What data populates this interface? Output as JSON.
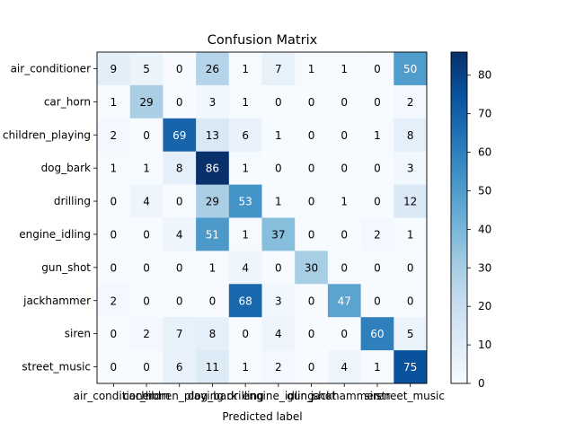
{
  "chart_data": {
    "type": "heatmap",
    "title": "Confusion Matrix",
    "xlabel": "Predicted label",
    "ylabel": "",
    "labels": [
      "air_conditioner",
      "car_horn",
      "children_playing",
      "dog_bark",
      "drilling",
      "engine_idling",
      "gun_shot",
      "jackhammer",
      "siren",
      "street_music"
    ],
    "matrix": [
      [
        9,
        5,
        0,
        26,
        1,
        7,
        1,
        1,
        0,
        50
      ],
      [
        1,
        29,
        0,
        3,
        1,
        0,
        0,
        0,
        0,
        2
      ],
      [
        2,
        0,
        69,
        13,
        6,
        1,
        0,
        0,
        1,
        8
      ],
      [
        1,
        1,
        8,
        86,
        1,
        0,
        0,
        0,
        0,
        3
      ],
      [
        0,
        4,
        0,
        29,
        53,
        1,
        0,
        1,
        0,
        12
      ],
      [
        0,
        0,
        4,
        51,
        1,
        37,
        0,
        0,
        2,
        1
      ],
      [
        0,
        0,
        0,
        1,
        4,
        0,
        30,
        0,
        0,
        0
      ],
      [
        2,
        0,
        0,
        0,
        68,
        3,
        0,
        47,
        0,
        0
      ],
      [
        0,
        2,
        7,
        8,
        0,
        4,
        0,
        0,
        60,
        5
      ],
      [
        0,
        0,
        6,
        11,
        1,
        2,
        0,
        4,
        1,
        75
      ]
    ],
    "value_range": [
      0,
      86
    ],
    "colormap": "Blues",
    "colorbar_ticks": [
      "0",
      "10",
      "20",
      "30",
      "40",
      "50",
      "60",
      "70",
      "80"
    ],
    "grid": false
  }
}
